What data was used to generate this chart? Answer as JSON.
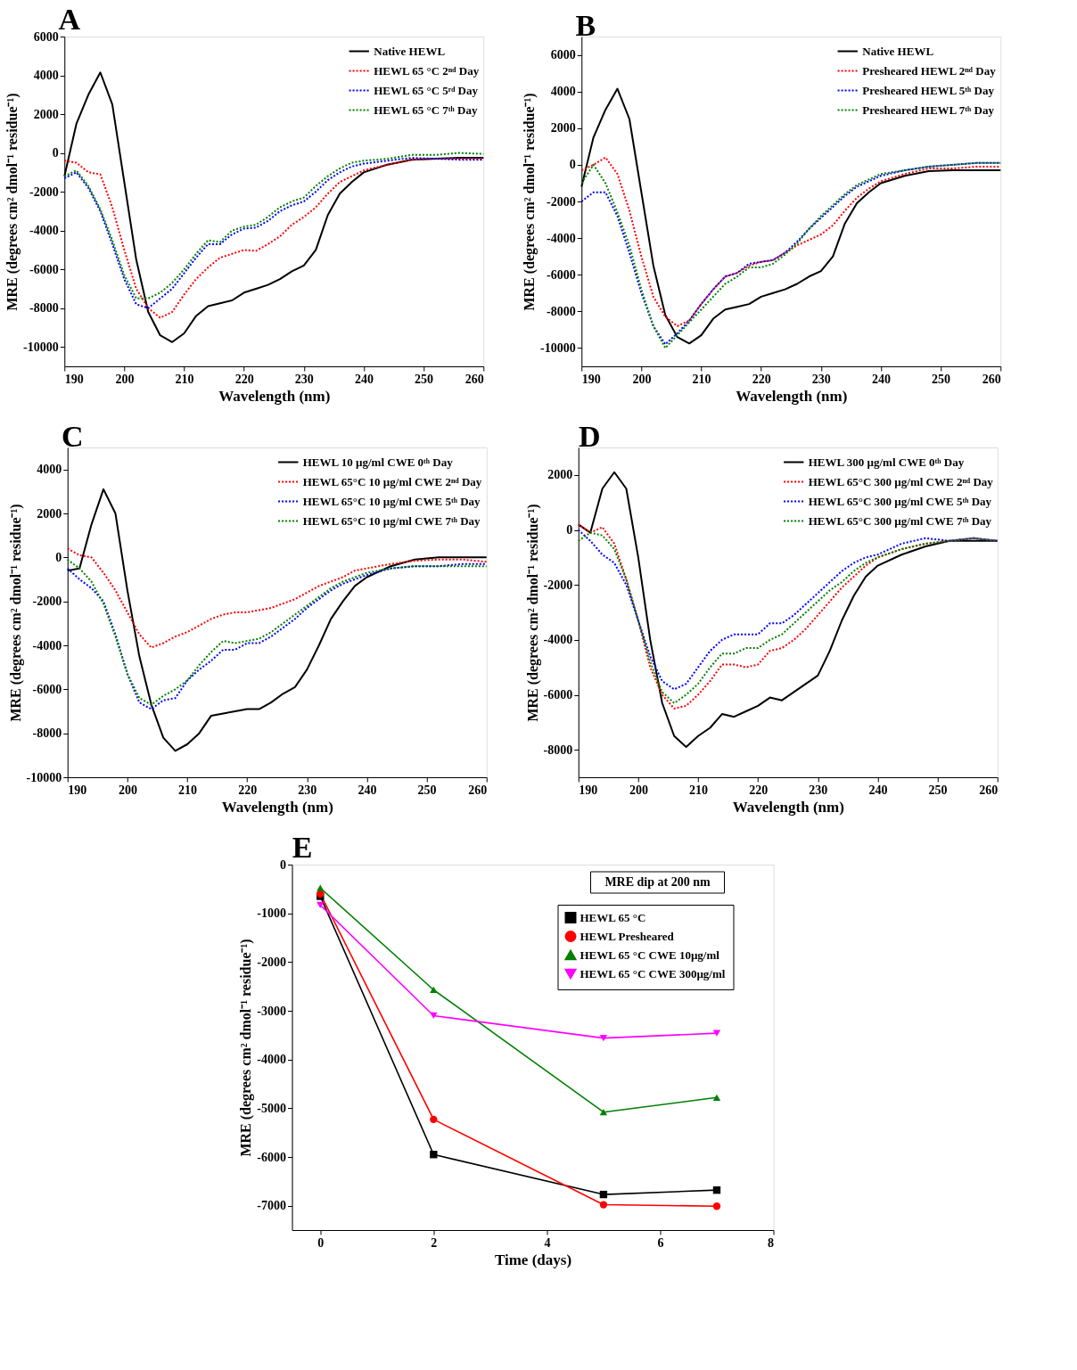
{
  "chart_data": [
    {
      "type": "line",
      "title": "A",
      "xlabel": "Wavelength (nm)",
      "ylabel": "MRE (degrees cm² dmol⁻¹ residue⁻¹)",
      "xlim": [
        190,
        260
      ],
      "xticks": [
        190,
        200,
        210,
        220,
        230,
        240,
        250,
        260
      ],
      "ylim": [
        -11000,
        6000
      ],
      "yticks": [
        -10000,
        -8000,
        -6000,
        -4000,
        -2000,
        0,
        2000,
        4000,
        6000
      ],
      "grid": false,
      "legend": "top right",
      "x": [
        190,
        192,
        194,
        196,
        198,
        200,
        202,
        204,
        206,
        208,
        210,
        212,
        214,
        216,
        218,
        220,
        222,
        224,
        226,
        228,
        230,
        232,
        234,
        236,
        238,
        240,
        244,
        248,
        252,
        256,
        260
      ],
      "series": [
        {
          "name": "Native HEWL",
          "color": "#000000",
          "line_style": "solid",
          "values": [
            -1200,
            1500,
            3000,
            4150,
            2500,
            -1500,
            -5500,
            -8200,
            -9400,
            -9750,
            -9300,
            -8400,
            -7900,
            -7750,
            -7600,
            -7200,
            -7000,
            -6800,
            -6500,
            -6100,
            -5800,
            -5000,
            -3200,
            -2100,
            -1500,
            -1000,
            -600,
            -350,
            -300,
            -250,
            -250
          ]
        },
        {
          "name": "HEWL 65 °C 2ⁿᵈ Day",
          "color": "#ff0000",
          "line_style": "dotted",
          "values": [
            -400,
            -500,
            -1000,
            -1100,
            -2800,
            -5000,
            -7000,
            -8000,
            -8500,
            -8200,
            -7300,
            -6500,
            -5900,
            -5400,
            -5200,
            -5000,
            -5050,
            -4700,
            -4300,
            -3700,
            -3300,
            -2800,
            -2100,
            -1500,
            -1200,
            -900,
            -600,
            -350,
            -300,
            -300,
            -300
          ]
        },
        {
          "name": "HEWL 65 °C 5ʳᵈ Day",
          "color": "#0000ff",
          "line_style": "dotted",
          "values": [
            -1300,
            -1000,
            -1800,
            -3000,
            -4700,
            -6500,
            -7800,
            -8000,
            -7500,
            -7000,
            -6200,
            -5400,
            -4700,
            -4700,
            -4200,
            -3900,
            -3850,
            -3500,
            -3000,
            -2700,
            -2500,
            -2000,
            -1400,
            -1000,
            -700,
            -550,
            -400,
            -250,
            -300,
            -350,
            -350
          ]
        },
        {
          "name": "HEWL 65 °C 7ᵗʰ Day",
          "color": "#008000",
          "line_style": "dotted",
          "values": [
            -1200,
            -900,
            -1700,
            -2900,
            -4500,
            -6300,
            -7500,
            -7500,
            -7200,
            -6700,
            -6000,
            -5200,
            -4500,
            -4600,
            -4000,
            -3800,
            -3700,
            -3300,
            -2800,
            -2500,
            -2300,
            -1700,
            -1200,
            -800,
            -500,
            -400,
            -300,
            -100,
            -100,
            0,
            -50
          ]
        }
      ]
    },
    {
      "type": "line",
      "title": "B",
      "xlabel": "Wavelength (nm)",
      "ylabel": "MRE (degrees cm² dmol⁻¹ residue⁻¹)",
      "xlim": [
        190,
        260
      ],
      "xticks": [
        190,
        200,
        210,
        220,
        230,
        240,
        250,
        260
      ],
      "ylim": [
        -11000,
        7000
      ],
      "yticks": [
        -10000,
        -8000,
        -6000,
        -4000,
        -2000,
        0,
        2000,
        4000,
        6000
      ],
      "grid": false,
      "legend": "top right",
      "x": [
        190,
        192,
        194,
        196,
        198,
        200,
        202,
        204,
        206,
        208,
        210,
        212,
        214,
        216,
        218,
        220,
        222,
        224,
        226,
        228,
        230,
        232,
        234,
        236,
        238,
        240,
        244,
        248,
        252,
        256,
        260
      ],
      "series": [
        {
          "name": "Native HEWL",
          "color": "#000000",
          "line_style": "solid",
          "values": [
            -1200,
            1500,
            3000,
            4150,
            2500,
            -1500,
            -5500,
            -8200,
            -9400,
            -9750,
            -9300,
            -8400,
            -7900,
            -7750,
            -7600,
            -7200,
            -7000,
            -6800,
            -6500,
            -6100,
            -5800,
            -5000,
            -3200,
            -2100,
            -1500,
            -1000,
            -600,
            -350,
            -300,
            -300,
            -300
          ]
        },
        {
          "name": "Presheared HEWL 2ⁿᵈ Day",
          "color": "#ff0000",
          "line_style": "dotted",
          "values": [
            -300,
            0,
            400,
            -500,
            -2500,
            -5000,
            -7200,
            -8300,
            -8800,
            -8500,
            -7600,
            -6800,
            -6100,
            -5900,
            -5500,
            -5300,
            -5200,
            -4800,
            -4400,
            -4100,
            -3800,
            -3300,
            -2500,
            -1800,
            -1300,
            -900,
            -500,
            -200,
            -200,
            -100,
            -100
          ]
        },
        {
          "name": "Presheared HEWL 5ᵗʰ Day",
          "color": "#0000ff",
          "line_style": "dotted",
          "values": [
            -2000,
            -1500,
            -1500,
            -2800,
            -4800,
            -7000,
            -8800,
            -9800,
            -9200,
            -8500,
            -7600,
            -6800,
            -6100,
            -5900,
            -5400,
            -5300,
            -5200,
            -4800,
            -4200,
            -3500,
            -2900,
            -2300,
            -1700,
            -1200,
            -900,
            -600,
            -300,
            -100,
            0,
            100,
            100
          ]
        },
        {
          "name": "Presheared HEWL 7ᵗʰ Day",
          "color": "#008000",
          "line_style": "dotted",
          "values": [
            -1000,
            0,
            -1000,
            -2600,
            -4400,
            -6800,
            -8800,
            -10000,
            -9300,
            -8600,
            -7900,
            -7200,
            -6500,
            -6100,
            -5600,
            -5600,
            -5400,
            -4900,
            -4300,
            -3500,
            -2800,
            -2200,
            -1600,
            -1100,
            -800,
            -500,
            -300,
            -100,
            0,
            100,
            100
          ]
        }
      ]
    },
    {
      "type": "line",
      "title": "C",
      "xlabel": "Wavelength (nm)",
      "ylabel": "MRE (degrees cm² dmol⁻¹ residue⁻¹)",
      "xlim": [
        190,
        260
      ],
      "xticks": [
        190,
        200,
        210,
        220,
        230,
        240,
        250,
        260
      ],
      "ylim": [
        -10000,
        5000
      ],
      "yticks": [
        -10000,
        -8000,
        -6000,
        -4000,
        -2000,
        0,
        2000,
        4000
      ],
      "grid": false,
      "legend": "top right",
      "x": [
        190,
        192,
        194,
        196,
        198,
        200,
        202,
        204,
        206,
        208,
        210,
        212,
        214,
        216,
        218,
        220,
        222,
        224,
        226,
        228,
        230,
        232,
        234,
        236,
        238,
        240,
        244,
        248,
        252,
        256,
        260
      ],
      "series": [
        {
          "name": "HEWL 10 µg/ml CWE 0ᵗʰ Day",
          "color": "#000000",
          "line_style": "solid",
          "values": [
            -600,
            -500,
            1500,
            3100,
            2000,
            -1500,
            -4500,
            -6700,
            -8200,
            -8800,
            -8500,
            -8000,
            -7200,
            -7100,
            -7000,
            -6900,
            -6900,
            -6600,
            -6200,
            -5900,
            -5100,
            -4000,
            -2800,
            -2000,
            -1300,
            -900,
            -400,
            -100,
            0,
            0,
            0
          ]
        },
        {
          "name": "HEWL 65°C 10 µg/ml CWE 2ⁿᵈ Day",
          "color": "#ff0000",
          "line_style": "dotted",
          "values": [
            400,
            100,
            0,
            -700,
            -1500,
            -2500,
            -3500,
            -4100,
            -3900,
            -3600,
            -3400,
            -3100,
            -2800,
            -2600,
            -2500,
            -2500,
            -2400,
            -2300,
            -2100,
            -1900,
            -1600,
            -1300,
            -1100,
            -900,
            -600,
            -500,
            -300,
            -150,
            -100,
            -100,
            -200
          ]
        },
        {
          "name": "HEWL 65°C 10 µg/ml CWE 5ᵗʰ Day",
          "color": "#0000ff",
          "line_style": "dotted",
          "values": [
            -500,
            -1000,
            -1400,
            -2000,
            -3500,
            -5300,
            -6600,
            -6900,
            -6500,
            -6400,
            -5600,
            -5100,
            -4700,
            -4200,
            -4200,
            -3900,
            -3900,
            -3600,
            -3200,
            -2800,
            -2300,
            -1900,
            -1500,
            -1200,
            -1000,
            -800,
            -500,
            -400,
            -400,
            -300,
            -300
          ]
        },
        {
          "name": "HEWL 65°C 10 µg/ml CWE 7ᵗʰ Day",
          "color": "#008000",
          "line_style": "dotted",
          "values": [
            -100,
            -500,
            -1100,
            -2100,
            -3600,
            -5300,
            -6400,
            -6700,
            -6300,
            -6000,
            -5600,
            -4900,
            -4300,
            -3800,
            -3900,
            -3800,
            -3700,
            -3400,
            -3000,
            -2600,
            -2200,
            -1800,
            -1400,
            -1100,
            -900,
            -700,
            -500,
            -400,
            -400,
            -400,
            -400
          ]
        }
      ]
    },
    {
      "type": "line",
      "title": "D",
      "xlabel": "Wavelength (nm)",
      "ylabel": "MRE (degrees cm² dmol⁻¹ residue⁻¹)",
      "xlim": [
        190,
        260
      ],
      "xticks": [
        190,
        200,
        210,
        220,
        230,
        240,
        250,
        260
      ],
      "ylim": [
        -9000,
        3000
      ],
      "yticks": [
        -8000,
        -6000,
        -4000,
        -2000,
        0,
        2000
      ],
      "grid": false,
      "legend": "top right",
      "x": [
        190,
        192,
        194,
        196,
        198,
        200,
        202,
        204,
        206,
        208,
        210,
        212,
        214,
        216,
        218,
        220,
        222,
        224,
        226,
        228,
        230,
        232,
        234,
        236,
        238,
        240,
        244,
        248,
        252,
        256,
        260
      ],
      "series": [
        {
          "name": "HEWL 300 µg/ml CWE 0ᵗʰ Day",
          "color": "#000000",
          "line_style": "solid",
          "values": [
            200,
            -100,
            1500,
            2100,
            1500,
            -1000,
            -4000,
            -6300,
            -7500,
            -7900,
            -7500,
            -7200,
            -6700,
            -6800,
            -6600,
            -6400,
            -6100,
            -6200,
            -5900,
            -5600,
            -5300,
            -4400,
            -3300,
            -2400,
            -1700,
            -1300,
            -900,
            -600,
            -400,
            -400,
            -400
          ]
        },
        {
          "name": "HEWL 65°C 300 µg/ml CWE 2ⁿᵈ Day",
          "color": "#ff0000",
          "line_style": "dotted",
          "values": [
            200,
            -100,
            100,
            -500,
            -1800,
            -3300,
            -5000,
            -6000,
            -6500,
            -6400,
            -6000,
            -5500,
            -4900,
            -4900,
            -5000,
            -4900,
            -4400,
            -4300,
            -4000,
            -3600,
            -3100,
            -2600,
            -2100,
            -1700,
            -1300,
            -1000,
            -700,
            -500,
            -400,
            -300,
            -400
          ]
        },
        {
          "name": "HEWL 65°C 300 µg/ml CWE 5ᵗʰ Day",
          "color": "#0000ff",
          "line_style": "dotted",
          "values": [
            0,
            -400,
            -900,
            -1200,
            -2000,
            -3300,
            -4600,
            -5500,
            -5800,
            -5600,
            -5000,
            -4400,
            -4000,
            -3800,
            -3800,
            -3800,
            -3400,
            -3400,
            -3100,
            -2700,
            -2300,
            -1900,
            -1500,
            -1200,
            -1000,
            -900,
            -500,
            -300,
            -400,
            -300,
            -400
          ]
        },
        {
          "name": "HEWL 65°C 300 µg/ml CWE 7ᵗʰ Day",
          "color": "#008000",
          "line_style": "dotted",
          "values": [
            -400,
            -100,
            -200,
            -700,
            -1800,
            -3300,
            -4800,
            -5900,
            -6300,
            -6000,
            -5600,
            -5000,
            -4500,
            -4500,
            -4300,
            -4300,
            -4000,
            -3800,
            -3400,
            -3000,
            -2600,
            -2200,
            -1900,
            -1500,
            -1200,
            -1000,
            -700,
            -500,
            -400,
            -300,
            -400
          ]
        }
      ]
    },
    {
      "type": "line",
      "title": "E",
      "xlabel": "Time (days)",
      "ylabel": "MRE (degrees cm² dmol⁻¹ residue⁻¹)",
      "xlim": [
        -0.5,
        8
      ],
      "xticks": [
        0,
        2,
        4,
        6,
        8
      ],
      "ylim": [
        -7500,
        0
      ],
      "yticks": [
        -7000,
        -6000,
        -5000,
        -4000,
        -3000,
        -2000,
        -1000,
        0
      ],
      "grid": false,
      "legend": "top right",
      "annotations": [
        "MRE dip at 200 nm"
      ],
      "x": [
        0,
        2,
        5,
        7
      ],
      "series": [
        {
          "name": "HEWL 65 °C",
          "color": "#000000",
          "line_style": "solid",
          "marker": "square",
          "values": [
            -650,
            -5950,
            -6770,
            -6680
          ]
        },
        {
          "name": "HEWL Presheared",
          "color": "#ff0000",
          "line_style": "solid",
          "marker": "circle",
          "values": [
            -600,
            -5230,
            -6980,
            -7010
          ]
        },
        {
          "name": "HEWL 65 °C CWE 10µg/ml",
          "color": "#008000",
          "line_style": "solid",
          "marker": "triangle",
          "values": [
            -480,
            -2570,
            -5080,
            -4780
          ]
        },
        {
          "name": "HEWL 65 °C CWE 300µg/ml",
          "color": "#ff00ff",
          "line_style": "solid",
          "marker": "triangle-down",
          "values": [
            -830,
            -3100,
            -3560,
            -3460
          ]
        }
      ]
    }
  ]
}
